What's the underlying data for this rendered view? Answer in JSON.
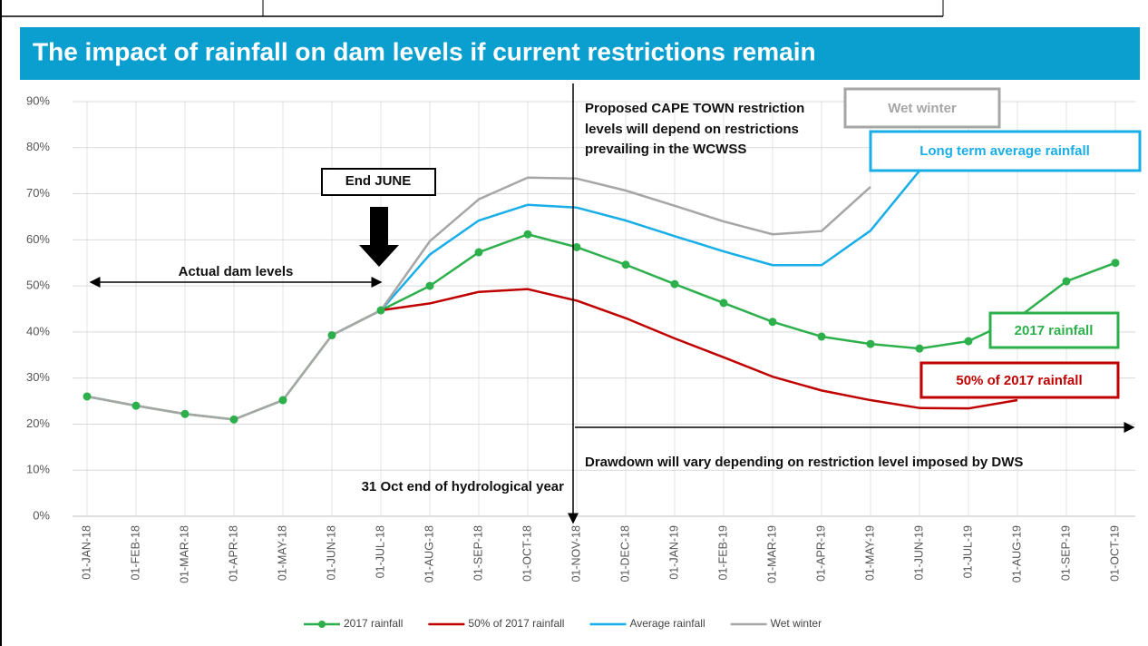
{
  "chart_data": {
    "type": "line",
    "title": "The impact of rainfall on dam levels if current restrictions remain",
    "categories": [
      "01-JAN-18",
      "01-FEB-18",
      "01-MAR-18",
      "01-APR-18",
      "01-MAY-18",
      "01-JUN-18",
      "01-JUL-18",
      "01-AUG-18",
      "01-SEP-18",
      "01-OCT-18",
      "01-NOV-18",
      "01-DEC-18",
      "01-JAN-19",
      "01-FEB-19",
      "01-MAR-19",
      "01-APR-19",
      "01-MAY-19",
      "01-JUN-19",
      "01-JUL-19",
      "01-AUG-19",
      "01-SEP-19",
      "01-OCT-19"
    ],
    "series": [
      {
        "name": "2017 rainfall",
        "color": "#2db04b",
        "markers": true,
        "values": [
          26,
          24,
          22.2,
          21,
          25.2,
          39.3,
          44.7,
          50,
          57.3,
          61.2,
          58.4,
          54.6,
          50.4,
          46.3,
          42.2,
          39,
          37.4,
          36.4,
          38,
          43,
          51,
          55
        ]
      },
      {
        "name": "50% of 2017 rainfall",
        "color": "#c00000",
        "markers": false,
        "values": [
          null,
          null,
          null,
          null,
          null,
          null,
          44.7,
          46.2,
          48.7,
          49.3,
          46.8,
          43,
          38.6,
          34.5,
          30.3,
          27.3,
          25.2,
          23.5,
          23.4,
          25.2,
          null,
          null
        ]
      },
      {
        "name": "Average rainfall",
        "color": "#19aee8",
        "markers": false,
        "values": [
          null,
          null,
          null,
          null,
          null,
          null,
          44.7,
          56.8,
          64.2,
          67.6,
          67,
          64.2,
          60.8,
          57.5,
          54.5,
          54.5,
          62,
          75,
          null,
          null,
          null,
          null
        ]
      },
      {
        "name": "Wet winter",
        "color": "#a6a6a6",
        "markers": false,
        "values": [
          26,
          24,
          22.2,
          21,
          25.2,
          39.3,
          44.7,
          59.7,
          68.8,
          73.5,
          73.3,
          70.7,
          67.4,
          64,
          61.2,
          61.9,
          71.5,
          null,
          null,
          null,
          null,
          null
        ]
      }
    ],
    "ylim": [
      0,
      90
    ],
    "yticks": [
      {
        "value": 0,
        "label": "0%"
      },
      {
        "value": 10,
        "label": "10%"
      },
      {
        "value": 20,
        "label": "20%"
      },
      {
        "value": 30,
        "label": "30%"
      },
      {
        "value": 40,
        "label": "40%"
      },
      {
        "value": 50,
        "label": "50%"
      },
      {
        "value": 60,
        "label": "60%"
      },
      {
        "value": 70,
        "label": "70%"
      },
      {
        "value": 80,
        "label": "80%"
      },
      {
        "value": 90,
        "label": "90%"
      }
    ],
    "grid": true,
    "legend": "bottom",
    "annotations": [
      "Actual dam levels",
      "End JUNE",
      "Proposed CAPE TOWN restriction",
      "levels will depend on restrictions",
      "prevailing in the WCWSS",
      "Drawdown will vary depending on restriction level imposed by DWS",
      "31 Oct end of hydrological year",
      "Wet winter",
      "Long term average rainfall",
      "2017 rainfall",
      "50% of 2017 rainfall"
    ]
  }
}
